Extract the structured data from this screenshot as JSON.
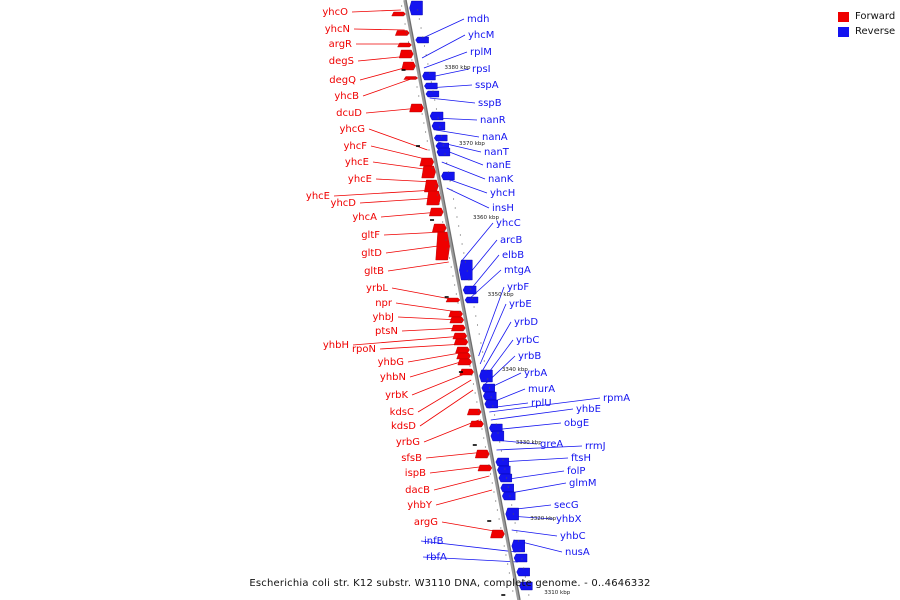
{
  "legend": {
    "forward": {
      "label": "Forward",
      "color": "#ef0000"
    },
    "reverse": {
      "label": "Reverse",
      "color": "#1414f0"
    }
  },
  "caption": "Escherichia coli str. K12 substr. W3110 DNA, complete genome. - 0..4646332",
  "ticks": [
    "3380 kbp",
    "3370 kbp",
    "3360 kbp",
    "3350 kbp",
    "3340 kbp",
    "3330 kbp",
    "3320 kbp",
    "3310 kbp"
  ],
  "forward_genes": [
    "yhcO",
    "yhcN",
    "argR",
    "degS",
    "degQ",
    "yhcB",
    "dcuD",
    "yhcG",
    "yhcF",
    "yhcE",
    "yhcE",
    "yhcE",
    "yhcD",
    "yhcA",
    "gltF",
    "gltD",
    "gltB",
    "yrbL",
    "npr",
    "yhbJ",
    "ptsN",
    "yhbH",
    "rpoN",
    "yhbG",
    "yhbN",
    "yrbK",
    "kdsC",
    "kdsD",
    "yrbG",
    "sfsB",
    "ispB",
    "dacB",
    "yhbY",
    "argG"
  ],
  "reverse_genes": [
    "mdh",
    "yhcM",
    "rplM",
    "rpsI",
    "sspA",
    "sspB",
    "nanR",
    "nanA",
    "nanT",
    "nanE",
    "nanK",
    "yhcH",
    "insH",
    "yhcC",
    "arcB",
    "elbB",
    "mtgA",
    "yrbF",
    "yrbE",
    "yrbD",
    "yrbC",
    "yrbB",
    "yrbA",
    "murA",
    "rplU",
    "rpmA",
    "yhbE",
    "obgE",
    "greA",
    "rrmJ",
    "ftsH",
    "folP",
    "glmM",
    "secG",
    "yhbX",
    "yhbC",
    "nusA",
    "infB",
    "rbfA"
  ]
}
